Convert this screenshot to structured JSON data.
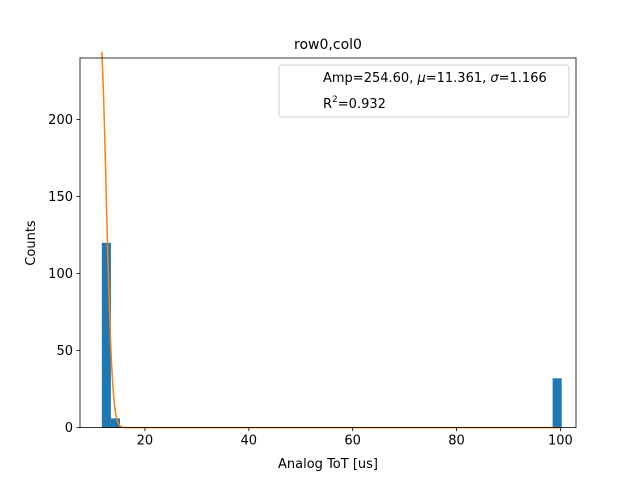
{
  "chart_data": {
    "type": "bar",
    "title": "row0,col0",
    "xlabel": "Analog ToT [us]",
    "ylabel": "Counts",
    "xlim": [
      7.5,
      103.0
    ],
    "ylim": [
      0,
      240
    ],
    "xticks": [
      20,
      40,
      60,
      80,
      100
    ],
    "yticks": [
      0,
      50,
      100,
      150,
      200
    ],
    "grid": false,
    "legend_placement": "top-right",
    "legend": {
      "line1": {
        "prefix": "Amp=254.60, ",
        "mu_sym": "μ",
        "mu_val": "=11.361, ",
        "sigma_sym": "σ",
        "sigma_val": "=1.166"
      },
      "line2": {
        "base": "R",
        "sup": "2",
        "rest": "=0.932"
      }
    },
    "bar_color": "#1f77b4",
    "fit_color": "#ff7f0e",
    "bin_width": 1.75,
    "histogram": [
      {
        "bin_start": 11.7,
        "count": 120
      },
      {
        "bin_start": 13.45,
        "count": 6
      },
      {
        "bin_start": 98.5,
        "count": 32
      }
    ],
    "fit": {
      "amplitude": 254.6,
      "mu": 11.361,
      "sigma": 1.166,
      "x_range": [
        11.7,
        100
      ]
    }
  }
}
